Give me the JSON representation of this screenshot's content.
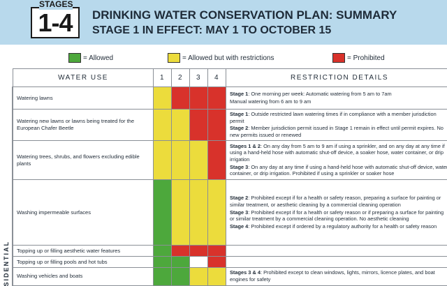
{
  "header": {
    "stages_word": "STAGES",
    "stages_range": "1-4",
    "title": "DRINKING WATER CONSERVATION PLAN: SUMMARY",
    "subtitle": "STAGE 1 IN EFFECT: MAY 1 TO OCTOBER 15"
  },
  "legend": [
    {
      "label": "= Allowed",
      "color": "#4da83c"
    },
    {
      "label": "= Allowed but with restrictions",
      "color": "#ecdc3c"
    },
    {
      "label": "= Prohibited",
      "color": "#d8322b"
    }
  ],
  "table": {
    "headers": {
      "use": "WATER USE",
      "s1": "1",
      "s2": "2",
      "s3": "3",
      "s4": "4",
      "details": "RESTRICTION DETAILS"
    },
    "section_label": "RESIDENTIAL",
    "rows": [
      {
        "use": "Watering lawns",
        "stages": [
          "yellow",
          "red",
          "red",
          "red"
        ],
        "details": [
          {
            "bold": "Stage 1",
            "text": ": One morning per week: Automatic watering from 5 am to 7am"
          },
          {
            "bold": "",
            "text": "Manual watering from 6 am to 9 am"
          }
        ]
      },
      {
        "use": "Watering new lawns or lawns being treated for the European Chafer Beetle",
        "stages": [
          "yellow",
          "yellow",
          "red",
          "red"
        ],
        "details": [
          {
            "bold": "Stage 1",
            "text": ": Outside restricted lawn watering times if in compliance with a member jurisdiction permit"
          },
          {
            "bold": "Stage 2",
            "text": ": Member jurisdiction permit issued in Stage 1 remain in effect until permit expires. No new permits issued or renewed"
          }
        ]
      },
      {
        "use": "Watering trees, shrubs, and flowers excluding edible plants",
        "stages": [
          "yellow",
          "yellow",
          "yellow",
          "red"
        ],
        "details": [
          {
            "bold": "Stages 1 & 2",
            "text": ": On any day from 5 am to 9 am if using a sprinkler, and on any day at any time if using a hand-held hose with automatic shut-off device, a soaker hose, water container, or drip irrigation"
          },
          {
            "bold": "Stage 3",
            "text": ": On any day at any time if using a hand-held hose with automatic shut-off device, water container, or drip irrigation. Prohibited if using a sprinkler or soaker hose"
          }
        ]
      },
      {
        "use": "Washing impermeable surfaces",
        "stages": [
          "green",
          "yellow",
          "yellow",
          "yellow"
        ],
        "details": [
          {
            "bold": "Stage 2",
            "text": ": Prohibited except if for a health or safety reason, preparing a surface for painting or similar treatment, or aesthetic cleaning by a commercial cleaning operation"
          },
          {
            "bold": "Stage 3",
            "text": ": Prohibited except if for a health or safety reason or if preparing a surface for painting or similar treatment by a commercial cleaning operation. No aesthetic cleaning"
          },
          {
            "bold": "Stage 4",
            "text": ": Prohibited except if ordered by a regulatory authority for a health or safety reason"
          }
        ]
      },
      {
        "use": "Topping up or filling aesthetic water features",
        "stages": [
          "green",
          "red",
          "red",
          "red"
        ],
        "details": []
      },
      {
        "use": "Topping up or filling pools and hot tubs",
        "stages": [
          "green",
          "green",
          "blank",
          "red"
        ],
        "details": []
      },
      {
        "use": "Washing vehicles and boats",
        "stages": [
          "green",
          "green",
          "yellow",
          "yellow"
        ],
        "details": [
          {
            "bold": "Stages 3 & 4",
            "text": ": Prohibited except to clean windows, lights, mirrors, licence plates, and boat engines for safety"
          }
        ]
      }
    ]
  }
}
